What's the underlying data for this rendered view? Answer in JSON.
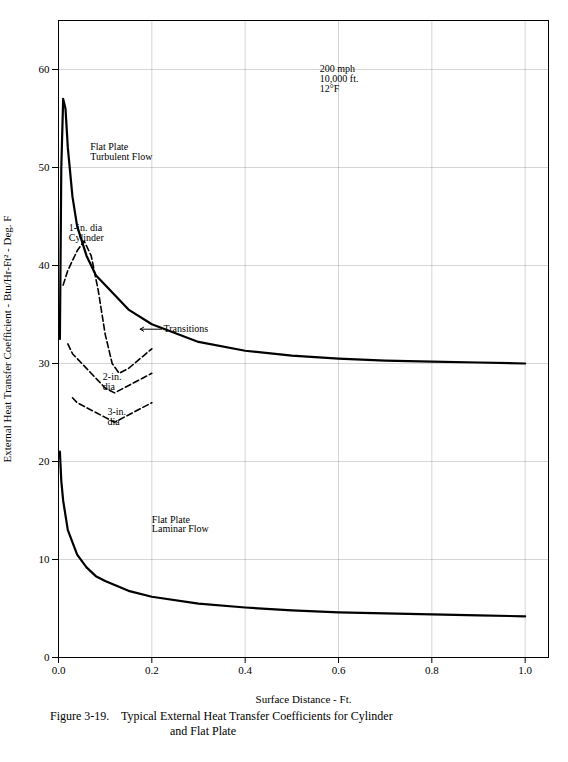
{
  "chart_data": {
    "type": "line",
    "title": "Figure 3-19.    Typical External Heat Transfer Coefficients for Cylinder\nand Flat Plate",
    "xlabel": "Surface Distance - Ft.",
    "ylabel": "External Heat Transfer Coefficient - Btu/Hr-Ft² - Deg. F",
    "xlim": [
      0,
      1.05
    ],
    "ylim": [
      0,
      65
    ],
    "xticks": [
      {
        "value": 0,
        "label": "0.0"
      },
      0.2,
      0.4,
      0.6,
      0.8,
      {
        "value": 1.0,
        "label": "1.0"
      }
    ],
    "yticks": [
      0,
      10,
      20,
      30,
      40,
      50,
      60
    ],
    "grid": true,
    "series": [
      {
        "name": "Flat Plate\nTurbulent Flow",
        "color": "#000000",
        "line_style": "solid",
        "x": [
          0.003,
          0.006,
          0.01,
          0.015,
          0.02,
          0.03,
          0.04,
          0.06,
          0.08,
          0.1,
          0.15,
          0.2,
          0.3,
          0.4,
          0.5,
          0.6,
          0.7,
          0.8,
          0.9,
          1.0
        ],
        "values": [
          32.5,
          50.0,
          57.0,
          56.0,
          52.0,
          47.0,
          44.0,
          41.0,
          39.0,
          38.0,
          35.5,
          34.0,
          32.2,
          31.3,
          30.8,
          30.5,
          30.3,
          30.2,
          30.1,
          30.0
        ]
      },
      {
        "name": "Flat Plate\nLaminar Flow",
        "color": "#000000",
        "line_style": "solid",
        "x": [
          0.003,
          0.006,
          0.01,
          0.02,
          0.04,
          0.06,
          0.08,
          0.1,
          0.15,
          0.2,
          0.3,
          0.4,
          0.5,
          0.6,
          0.7,
          0.8,
          0.9,
          1.0
        ],
        "values": [
          21.0,
          18.0,
          16.0,
          13.0,
          10.5,
          9.2,
          8.3,
          7.8,
          6.8,
          6.2,
          5.5,
          5.1,
          4.8,
          4.6,
          4.5,
          4.4,
          4.3,
          4.2
        ]
      },
      {
        "name": "1-in. dia\nCylinder",
        "color": "#000000",
        "line_style": "dashed",
        "x": [
          0.01,
          0.02,
          0.03,
          0.04,
          0.055,
          0.07,
          0.085,
          0.1,
          0.115,
          0.13,
          0.15,
          0.175,
          0.2
        ],
        "values": [
          38.0,
          39.5,
          40.5,
          41.5,
          42.5,
          41.0,
          37.5,
          33.0,
          30.0,
          29.0,
          29.5,
          30.5,
          31.5
        ]
      },
      {
        "name": "2-in.\ndia",
        "color": "#000000",
        "line_style": "dashed",
        "x": [
          0.02,
          0.03,
          0.04,
          0.06,
          0.08,
          0.1,
          0.12,
          0.14,
          0.16,
          0.18,
          0.2
        ],
        "values": [
          32.0,
          31.0,
          30.5,
          29.5,
          28.5,
          27.5,
          27.0,
          27.5,
          28.0,
          28.5,
          29.0
        ]
      },
      {
        "name": "3-in.\ndia",
        "color": "#000000",
        "line_style": "dashed",
        "x": [
          0.03,
          0.04,
          0.06,
          0.08,
          0.1,
          0.12,
          0.14,
          0.16,
          0.18,
          0.2
        ],
        "values": [
          26.5,
          26.0,
          25.5,
          25.0,
          24.5,
          24.0,
          24.5,
          25.0,
          25.5,
          26.0
        ]
      }
    ],
    "annotations": [
      {
        "text": "Transitions",
        "x": 0.225,
        "y": 33.5,
        "arrow_x": 0.175,
        "arrow_y": 33.5
      },
      {
        "text": "Flat Plate\nTurbulent Flow",
        "x": 0.068,
        "y": 52.5,
        "position": "below"
      },
      {
        "text": "Flat Plate\nLaminar Flow",
        "x": 0.2,
        "y": 14.5,
        "position": "below"
      },
      {
        "text": "1-in. dia\nCylinder",
        "x": 0.022,
        "y": 42.5,
        "position": "above"
      },
      {
        "text": "2-in.\ndia",
        "x": 0.095,
        "y": 29.0,
        "position": "below"
      },
      {
        "text": "3-in.\ndia",
        "x": 0.105,
        "y": 25.5,
        "position": "below"
      },
      {
        "text": "200 mph\n10,000 ft.\n12°F",
        "x": 0.56,
        "y": 60.5,
        "position": "below"
      }
    ]
  }
}
